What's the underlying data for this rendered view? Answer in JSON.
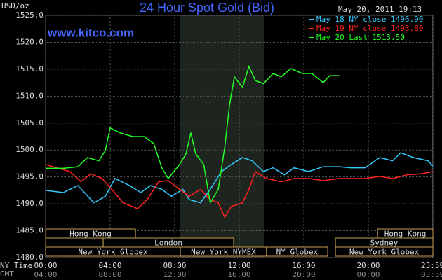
{
  "chart_data": {
    "type": "line",
    "title": "24 Hour Spot Gold (Bid)",
    "subtitle": "May 20, 2011 19:13",
    "watermark": "www.kitco.com",
    "ylabel": "USD/oz",
    "xlabel": "NY Time",
    "x2label": "GMT",
    "ylim": [
      1480,
      1525
    ],
    "yticks": [
      {
        "value": 1480,
        "label": "1480.0"
      },
      {
        "value": 1485,
        "label": "1485.0"
      },
      {
        "value": 1490,
        "label": "1490.0"
      },
      {
        "value": 1495,
        "label": "1495.0"
      },
      {
        "value": 1500,
        "label": "1500.0"
      },
      {
        "value": 1505,
        "label": "1505.0"
      },
      {
        "value": 1510,
        "label": "1510.0"
      },
      {
        "value": 1515,
        "label": "1515.0"
      },
      {
        "value": 1520,
        "label": "1520.0"
      },
      {
        "value": 1525,
        "label": "1525.0"
      }
    ],
    "xlim": [
      0,
      24
    ],
    "xticks": [
      {
        "value": 0,
        "label": "00:00"
      },
      {
        "value": 4,
        "label": "04:00"
      },
      {
        "value": 8,
        "label": "08:00"
      },
      {
        "value": 12,
        "label": "12:00"
      },
      {
        "value": 16,
        "label": "16:00"
      },
      {
        "value": 20,
        "label": "20:00"
      },
      {
        "value": 23.98,
        "label": "23:59"
      }
    ],
    "x2ticks": [
      {
        "value": 0,
        "label": "04:00"
      },
      {
        "value": 4,
        "label": "08:00"
      },
      {
        "value": 8,
        "label": "12:00"
      },
      {
        "value": 12,
        "label": "16:00"
      },
      {
        "value": 16,
        "label": "20:00"
      },
      {
        "value": 20,
        "label": "00:00"
      },
      {
        "value": 23.98,
        "label": "03:59"
      }
    ],
    "grid": true,
    "highlight": {
      "start": 8.33,
      "end": 13.55
    },
    "sessions": [
      {
        "label": "Hong Kong",
        "row": 0,
        "start": 0,
        "end": 5.57
      },
      {
        "label": "Hong Kong",
        "row": 0,
        "start": 20.57,
        "end": 24
      },
      {
        "row": 1,
        "start": 0,
        "end": 3.57
      },
      {
        "label": "London",
        "row": 1,
        "start": 3.57,
        "end": 11.65
      },
      {
        "label": "Sydney",
        "row": 1,
        "start": 17.96,
        "end": 24
      },
      {
        "label": "New York Globex",
        "row": 2,
        "start": 0,
        "end": 8.35
      },
      {
        "label": "New York NYMEX",
        "row": 2,
        "start": 8.35,
        "end": 13.69
      },
      {
        "label": "NY Globex",
        "row": 2,
        "start": 13.69,
        "end": 17.48
      },
      {
        "label": "New York Globex",
        "row": 2,
        "start": 17.96,
        "end": 24
      }
    ],
    "series": [
      {
        "name": "May 18 NY close 1496.90",
        "color": "#33ccff",
        "x": [
          0,
          1.1,
          2.0,
          3.0,
          3.7,
          4.3,
          5.2,
          5.9,
          6.5,
          7.2,
          7.8,
          8.5,
          8.9,
          9.6,
          10.2,
          10.9,
          11.5,
          12.2,
          12.8,
          13.5,
          14.1,
          14.8,
          15.4,
          16.3,
          17.2,
          18.2,
          18.9,
          19.8,
          20.7,
          21.5,
          22.0,
          22.8,
          23.7,
          24
        ],
        "values": [
          1492.5,
          1492.1,
          1493.4,
          1490.2,
          1491.4,
          1494.7,
          1493.4,
          1492.1,
          1493.4,
          1492.7,
          1491.4,
          1492.7,
          1490.8,
          1490.2,
          1492.7,
          1496.0,
          1497.3,
          1498.6,
          1498.0,
          1496.0,
          1496.7,
          1495.4,
          1496.7,
          1496.0,
          1496.9,
          1496.9,
          1496.7,
          1496.7,
          1498.6,
          1498.0,
          1499.5,
          1498.6,
          1498.0,
          1497.0
        ]
      },
      {
        "name": "May 19 NY close 1493.80",
        "color": "#ff2222",
        "x": [
          0,
          0.7,
          1.5,
          2.2,
          2.8,
          3.5,
          4.1,
          4.8,
          5.7,
          6.3,
          7.0,
          7.6,
          8.3,
          8.9,
          9.6,
          10.2,
          10.7,
          11.1,
          11.5,
          12.2,
          12.6,
          13.0,
          13.7,
          14.6,
          15.4,
          16.3,
          17.2,
          18.2,
          19.8,
          20.7,
          21.5,
          22.4,
          23.3,
          24
        ],
        "values": [
          1497.3,
          1496.7,
          1496.0,
          1494.1,
          1495.6,
          1494.7,
          1492.7,
          1490.2,
          1489.1,
          1490.8,
          1494.1,
          1494.3,
          1492.7,
          1491.4,
          1492.7,
          1490.8,
          1490.2,
          1487.5,
          1489.5,
          1490.2,
          1492.7,
          1496.0,
          1494.7,
          1494.1,
          1494.7,
          1494.7,
          1494.3,
          1494.7,
          1494.7,
          1495.1,
          1494.7,
          1495.4,
          1495.6,
          1496.0
        ]
      },
      {
        "name": "May 20 Last 1513.50",
        "color": "#22ff22",
        "x": [
          0,
          1.1,
          2.0,
          2.6,
          3.3,
          3.7,
          4.0,
          4.6,
          5.4,
          6.1,
          6.7,
          7.2,
          7.6,
          8.3,
          8.7,
          9.0,
          9.3,
          9.8,
          10.2,
          10.7,
          11.1,
          11.4,
          11.7,
          12.2,
          12.6,
          13.0,
          13.5,
          14.1,
          14.6,
          15.2,
          15.9,
          16.5,
          17.2,
          17.6,
          18.2
        ],
        "values": [
          1496.6,
          1496.6,
          1496.9,
          1498.6,
          1498.0,
          1499.9,
          1504.1,
          1503.2,
          1502.5,
          1502.5,
          1501.2,
          1496.7,
          1494.7,
          1497.3,
          1499.3,
          1503.2,
          1499.3,
          1497.3,
          1490.2,
          1492.7,
          1500.5,
          1508.4,
          1513.6,
          1511.6,
          1515.5,
          1512.9,
          1512.3,
          1514.2,
          1513.6,
          1515.1,
          1514.2,
          1514.2,
          1512.5,
          1513.8,
          1513.8
        ]
      }
    ]
  }
}
